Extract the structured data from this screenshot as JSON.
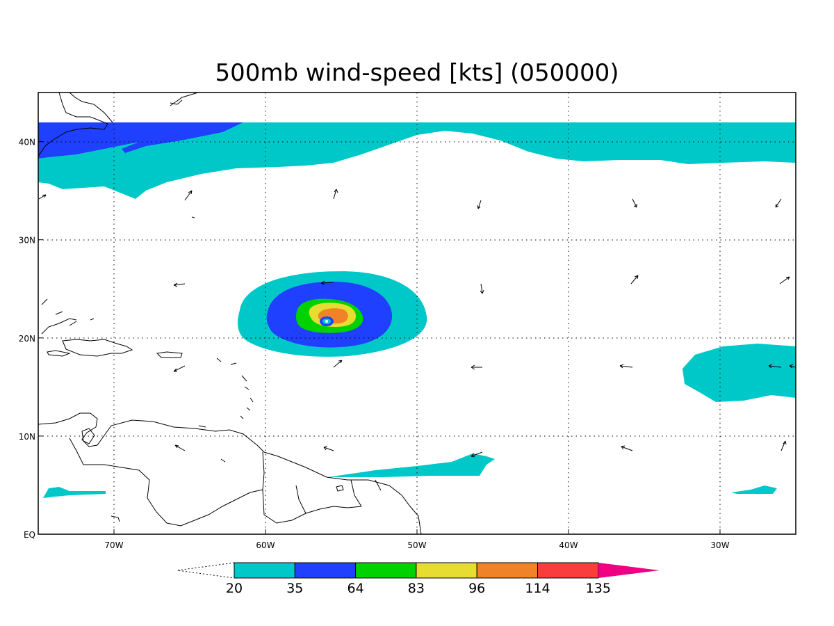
{
  "title": "500mb wind-speed [kts] (050000)",
  "map": {
    "lon_range": [
      -75,
      -25
    ],
    "lat_range": [
      0,
      45
    ],
    "x_ticks": [
      {
        "lon": -70,
        "label": "70W"
      },
      {
        "lon": -60,
        "label": "60W"
      },
      {
        "lon": -50,
        "label": "50W"
      },
      {
        "lon": -40,
        "label": "40W"
      },
      {
        "lon": -30,
        "label": "30W"
      }
    ],
    "y_ticks": [
      {
        "lat": 0,
        "label": "EQ"
      },
      {
        "lat": 10,
        "label": "10N"
      },
      {
        "lat": 20,
        "label": "20N"
      },
      {
        "lat": 30,
        "label": "30N"
      },
      {
        "lat": 40,
        "label": "40N"
      }
    ],
    "grid": "dotted"
  },
  "colorbar": {
    "levels": [
      "20",
      "35",
      "64",
      "83",
      "96",
      "114",
      "135"
    ],
    "colors": [
      "#ffffff",
      "#00c8c8",
      "#2040ff",
      "#00d200",
      "#e6dc32",
      "#f08228",
      "#fa3c3c",
      "#f00082"
    ]
  },
  "colors": {
    "cyan": "#00c8c8",
    "blue": "#2040ff",
    "green": "#00d200",
    "yellow": "#e6dc32",
    "orange": "#f08228",
    "red": "#fa3c3c",
    "magenta": "#f00082"
  }
}
